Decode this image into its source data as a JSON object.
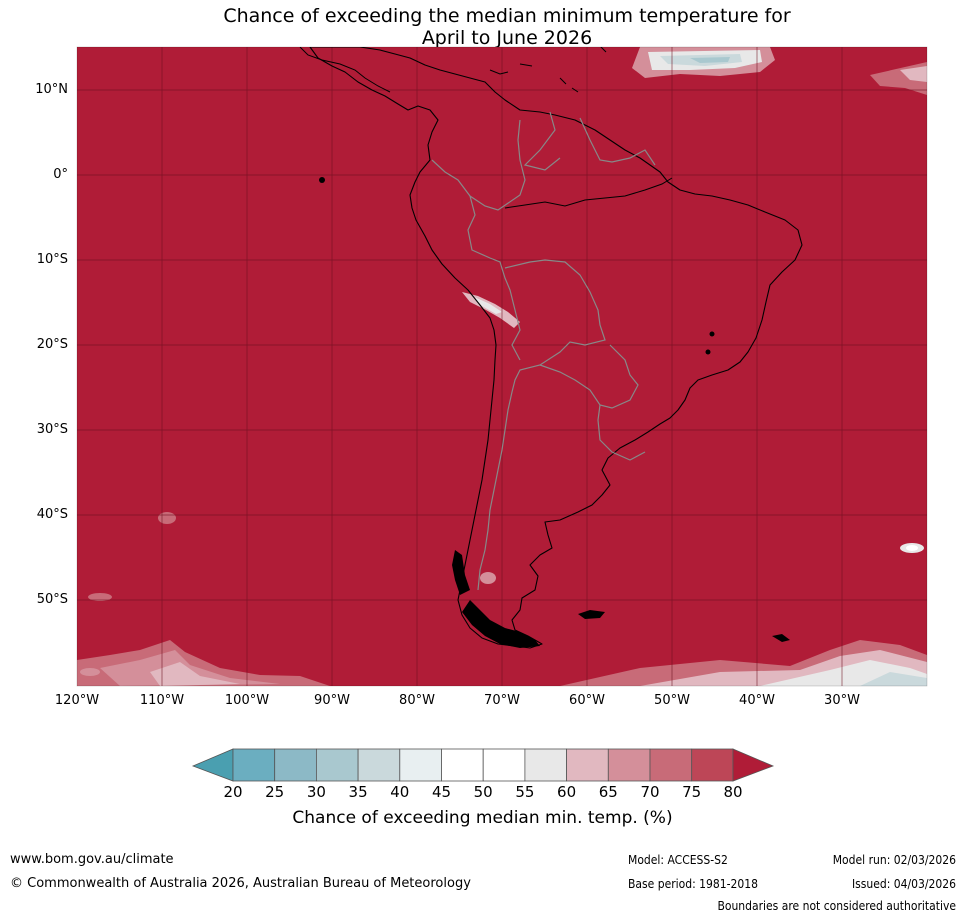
{
  "title": {
    "line1": "Chance of exceeding the median minimum temperature for",
    "line2": "April to June 2026"
  },
  "map": {
    "region": "South America",
    "background_color": "#b01c37",
    "lat_labels": [
      "10°N",
      "0°",
      "10°S",
      "20°S",
      "30°S",
      "40°S",
      "50°S"
    ],
    "lon_labels": [
      "120°W",
      "110°W",
      "100°W",
      "90°W",
      "80°W",
      "70°W",
      "60°W",
      "50°W",
      "40°W",
      "30°W"
    ]
  },
  "colorbar": {
    "title": "Chance of exceeding median min. temp. (%)",
    "ticks": [
      "20",
      "25",
      "30",
      "35",
      "40",
      "45",
      "50",
      "55",
      "60",
      "65",
      "70",
      "75",
      "80"
    ],
    "colors": [
      "#4a9fb0",
      "#6baec0",
      "#8cb9c6",
      "#a9c8cf",
      "#cad9dc",
      "#e8eff1",
      "#ffffff",
      "#ffffff",
      "#e8e8e8",
      "#e1b8c0",
      "#d48f9a",
      "#c86b78",
      "#bd4657",
      "#b01c37"
    ]
  },
  "footer": {
    "website": "www.bom.gov.au/climate",
    "copyright": "© Commonwealth of Australia 2026, Australian Bureau of Meteorology",
    "model": "Model: ACCESS-S2",
    "base_period": "Base period: 1981-2018",
    "model_run": "Model run: 02/03/2026",
    "issued": "Issued: 04/03/2026",
    "disclaimer": "Boundaries are not considered authoritative"
  }
}
